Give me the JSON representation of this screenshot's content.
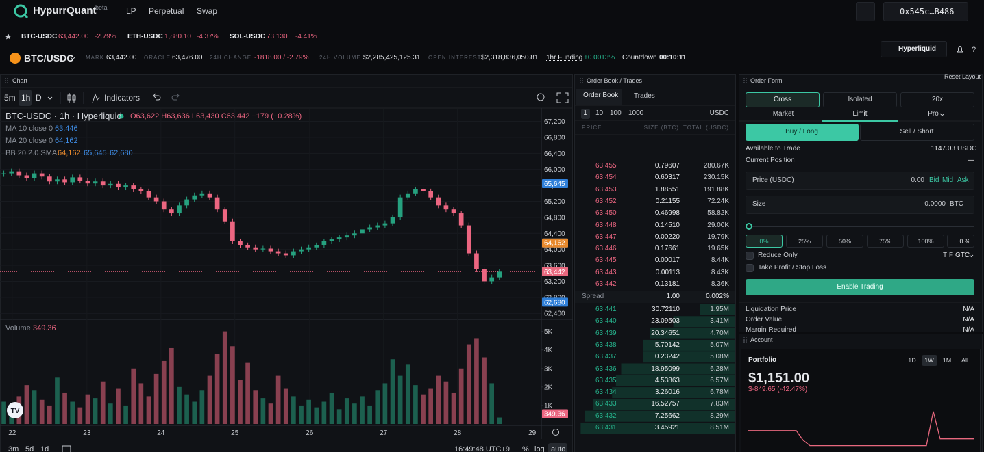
{
  "nav": {
    "brand": "HypurrQuant",
    "badge": "beta",
    "links": [
      "LP",
      "Perpetual",
      "Swap"
    ],
    "address": "0x545c…B486"
  },
  "tickers": [
    {
      "symbol": "BTC-USDC",
      "price": "63,442.00",
      "change": "-2.79%"
    },
    {
      "symbol": "ETH-USDC",
      "price": "1,880.10",
      "change": "-4.37%"
    },
    {
      "symbol": "SOL-USDC",
      "price": "73.130",
      "change": "-4.41%"
    }
  ],
  "market": {
    "pair": "BTC/USDC",
    "stats": [
      {
        "label": "MARK",
        "value": "63,442.00"
      },
      {
        "label": "ORACLE",
        "value": "63,476.00"
      },
      {
        "label": "24H CHANGE",
        "value": "-1818.00 / -2.79%"
      },
      {
        "label": "24H VOLUME",
        "value": "$2,285,425,125.31"
      },
      {
        "label": "OPEN INTEREST",
        "value": "$2,318,836,050.81"
      }
    ],
    "funding_label": "1hr Funding",
    "funding": "+0.0013%",
    "countdown_label": "Countdown",
    "countdown": "00:10:11",
    "venue": "Hyperliquid",
    "reset": "Reset Layout"
  },
  "chart_panel": {
    "title": "Chart",
    "intervals": [
      "5m",
      "1h",
      "D"
    ],
    "indicators": "Indicators",
    "legend": {
      "symbol": "BTC-USDC · 1h · Hyperliquid",
      "ohlc": "O63,622 H63,636 L63,430 C63,442 −179 (−0.28%)",
      "ma10": "MA 10 close 0",
      "ma10_value": "63,446",
      "ma20": "MA 20 close 0",
      "ma20_value": "64,162",
      "bb": "BB 20 2.0 SMA",
      "bb_values": [
        "64,162",
        "65,645",
        "62,680"
      ]
    },
    "volume_label": "Volume",
    "ranges": [
      "3m",
      "5d",
      "1d"
    ],
    "clock": "16:49:48 UTC+9",
    "options": [
      "%",
      "log",
      "auto"
    ]
  },
  "chart_data": {
    "type": "candlestick",
    "values": [
      65900,
      65950,
      65850,
      65780,
      65900,
      65820,
      65700,
      65750,
      65680,
      65800,
      65720,
      65650,
      65700,
      65600,
      65640,
      65550,
      65600,
      65500,
      65450,
      65300,
      65200,
      65000,
      64900,
      65100,
      65250,
      65350,
      65400,
      65300,
      65000,
      64700,
      64200,
      64100,
      64050,
      64000,
      64020,
      63950,
      63900,
      63850,
      63950,
      64000,
      64050,
      64100,
      64200,
      64250,
      64300,
      64350,
      64400,
      64500,
      64550,
      64600,
      64650,
      64800,
      65300,
      65400,
      65500,
      65450,
      65300,
      65100,
      65000,
      64900,
      64600,
      63900,
      63500,
      63200,
      63300,
      63442
    ],
    "ylim": [
      62250,
      67500
    ],
    "yticks": [
      {
        "value": 62400,
        "label": "62,400"
      },
      {
        "value": 62800,
        "label": "62,800"
      },
      {
        "value": 63200,
        "label": "63,200"
      },
      {
        "value": 63600,
        "label": "63,600"
      },
      {
        "value": 64000,
        "label": "64,000"
      },
      {
        "value": 64400,
        "label": "64,400"
      },
      {
        "value": 64800,
        "label": "64,800"
      },
      {
        "value": 65200,
        "label": "65,200"
      },
      {
        "value": 65600,
        "label": "65,600"
      },
      {
        "value": 66000,
        "label": "66,000"
      },
      {
        "value": 66400,
        "label": "66,400"
      },
      {
        "value": 66800,
        "label": "66,800"
      },
      {
        "value": 67200,
        "label": "67,200"
      }
    ],
    "xlim": [
      -0.5,
      70.5
    ],
    "xticks": [
      {
        "value": 1.1,
        "label": "22"
      },
      {
        "value": 10.9,
        "label": "23"
      },
      {
        "value": 20.6,
        "label": "24"
      },
      {
        "value": 30.3,
        "label": "25"
      },
      {
        "value": 40.1,
        "label": "26"
      },
      {
        "value": 49.8,
        "label": "27"
      },
      {
        "value": 59.5,
        "label": "28"
      },
      {
        "value": 69.3,
        "label": "29"
      }
    ],
    "price_labels": [
      {
        "value": 65645,
        "label": "65,645",
        "color": "#2f7fd8"
      },
      {
        "value": 64162,
        "label": "64,162",
        "color": "#2f7fd8"
      },
      {
        "value": 64162,
        "label": "64,162",
        "color": "#e8892c"
      },
      {
        "value": 63446,
        "label": "63,446",
        "color": "#2f7fd8"
      },
      {
        "value": 63442,
        "label": "63,442",
        "color": "#e8687e"
      },
      {
        "value": 62680,
        "label": "62,680",
        "color": "#2f7fd8"
      }
    ],
    "up_color": "#26a17f",
    "down_color": "#ec6681",
    "volume": {
      "values": [
        1200,
        900,
        1500,
        2100,
        1800,
        1300,
        1000,
        2500,
        1700,
        1200,
        900,
        1600,
        1400,
        2300,
        1100,
        1900,
        1000,
        3000,
        2200,
        1500,
        2700,
        3400,
        4100,
        2000,
        1600,
        1200,
        1800,
        2600,
        3800,
        5000,
        4200,
        2400,
        3300,
        1800,
        1400,
        1100,
        2600,
        1900,
        1500,
        1000,
        1300,
        900,
        1200,
        1700,
        800,
        1400,
        1100,
        1500,
        1000,
        1800,
        2200,
        3500,
        2600,
        3200,
        2100,
        1600,
        1900,
        2600,
        2300,
        1700,
        3000,
        4300,
        4600,
        3600,
        2200,
        349.36
      ],
      "ylim": [
        0,
        5650
      ],
      "yticks": [
        {
          "value": 1000,
          "label": "1K"
        },
        {
          "value": 2000,
          "label": "2K"
        },
        {
          "value": 3000,
          "label": "3K"
        },
        {
          "value": 4000,
          "label": "4K"
        },
        {
          "value": 5000,
          "label": "5K"
        }
      ]
    }
  },
  "order_book": {
    "title": "Order Book / Trades",
    "tabs": [
      "Order Book",
      "Trades"
    ],
    "groupings": [
      "1",
      "10",
      "100",
      "1000"
    ],
    "unit": "USDC",
    "columns": [
      "PRICE",
      "SIZE (BTC)",
      "TOTAL (USDC)"
    ],
    "asks": [
      [
        "63,455",
        "0.79607",
        "280.67K"
      ],
      [
        "63,454",
        "0.60317",
        "230.15K"
      ],
      [
        "63,453",
        "1.88551",
        "191.88K"
      ],
      [
        "63,452",
        "0.21155",
        "72.24K"
      ],
      [
        "63,450",
        "0.46998",
        "58.82K"
      ],
      [
        "63,448",
        "0.14510",
        "29.00K"
      ],
      [
        "63,447",
        "0.00220",
        "19.79K"
      ],
      [
        "63,446",
        "0.17661",
        "19.65K"
      ],
      [
        "63,445",
        "0.00017",
        "8.44K"
      ],
      [
        "63,443",
        "0.00113",
        "8.43K"
      ],
      [
        "63,442",
        "0.13181",
        "8.36K"
      ]
    ],
    "spread": [
      "Spread",
      "1.00",
      "0.002%"
    ],
    "bids": [
      {
        "price": "63,441",
        "size": "30.72110",
        "total": {
          "value": 1950000,
          "label": "1.95M"
        }
      },
      {
        "price": "63,440",
        "size": "23.09503",
        "total": {
          "value": 3410000,
          "label": "3.41M"
        }
      },
      {
        "price": "63,439",
        "size": "20.34651",
        "total": {
          "value": 4700000,
          "label": "4.70M"
        }
      },
      {
        "price": "63,438",
        "size": "5.70142",
        "total": {
          "value": 5070000,
          "label": "5.07M"
        }
      },
      {
        "price": "63,437",
        "size": "0.23242",
        "total": {
          "value": 5080000,
          "label": "5.08M"
        }
      },
      {
        "price": "63,436",
        "size": "18.95099",
        "total": {
          "value": 6280000,
          "label": "6.28M"
        }
      },
      {
        "price": "63,435",
        "size": "4.53863",
        "total": {
          "value": 6570000,
          "label": "6.57M"
        }
      },
      {
        "price": "63,434",
        "size": "3.26016",
        "total": {
          "value": 6780000,
          "label": "6.78M"
        }
      },
      {
        "price": "63,433",
        "size": "16.52757",
        "total": {
          "value": 7830000,
          "label": "7.83M"
        }
      },
      {
        "price": "63,432",
        "size": "7.25662",
        "total": {
          "value": 8290000,
          "label": "8.29M"
        }
      },
      {
        "price": "63,431",
        "size": "3.45921",
        "total": {
          "value": 8510000,
          "label": "8.51M"
        }
      }
    ]
  },
  "order_form": {
    "title": "Order Form",
    "margin": [
      "Cross",
      "Isolated",
      "20x"
    ],
    "types": [
      "Market",
      "Limit",
      "Pro"
    ],
    "sides": [
      "Buy / Long",
      "Sell / Short"
    ],
    "available": [
      "Available to Trade",
      "1147.03",
      "USDC"
    ],
    "position": [
      "Current Position",
      "—"
    ],
    "price": [
      "Price (USDC)",
      "0.00",
      "Bid",
      "Mid",
      "Ask"
    ],
    "size": [
      "Size",
      "0.0000",
      "BTC"
    ],
    "percents": [
      "0%",
      "25%",
      "50%",
      "75%",
      "100%"
    ],
    "percent_value": "0 %",
    "reduce": "Reduce Only",
    "tif": [
      "TIF",
      "GTC"
    ],
    "tpsl": "Take Profit / Stop Loss",
    "enable": "Enable Trading",
    "info": [
      [
        "Liquidation Price",
        "N/A"
      ],
      [
        "Order Value",
        "N/A"
      ],
      [
        "Margin Required",
        "N/A"
      ]
    ]
  },
  "account": {
    "title": "Account",
    "portfolio": "Portfolio",
    "periods": [
      "1D",
      "1W",
      "1M",
      "All"
    ],
    "value": "$1,151.00",
    "change": "$-849.65 (-42.47%)",
    "history": {
      "values": [
        2000,
        2000,
        2000,
        2000,
        2000,
        2000,
        2000,
        2000,
        1000,
        443,
        443,
        443,
        443,
        443,
        443,
        443,
        443,
        443,
        443,
        443,
        443,
        443,
        443,
        443,
        443,
        443,
        443,
        4000,
        1151,
        1151,
        1151,
        1151,
        1151,
        1151
      ],
      "ylim": [
        200,
        5200
      ],
      "color": "#e8687e"
    }
  }
}
